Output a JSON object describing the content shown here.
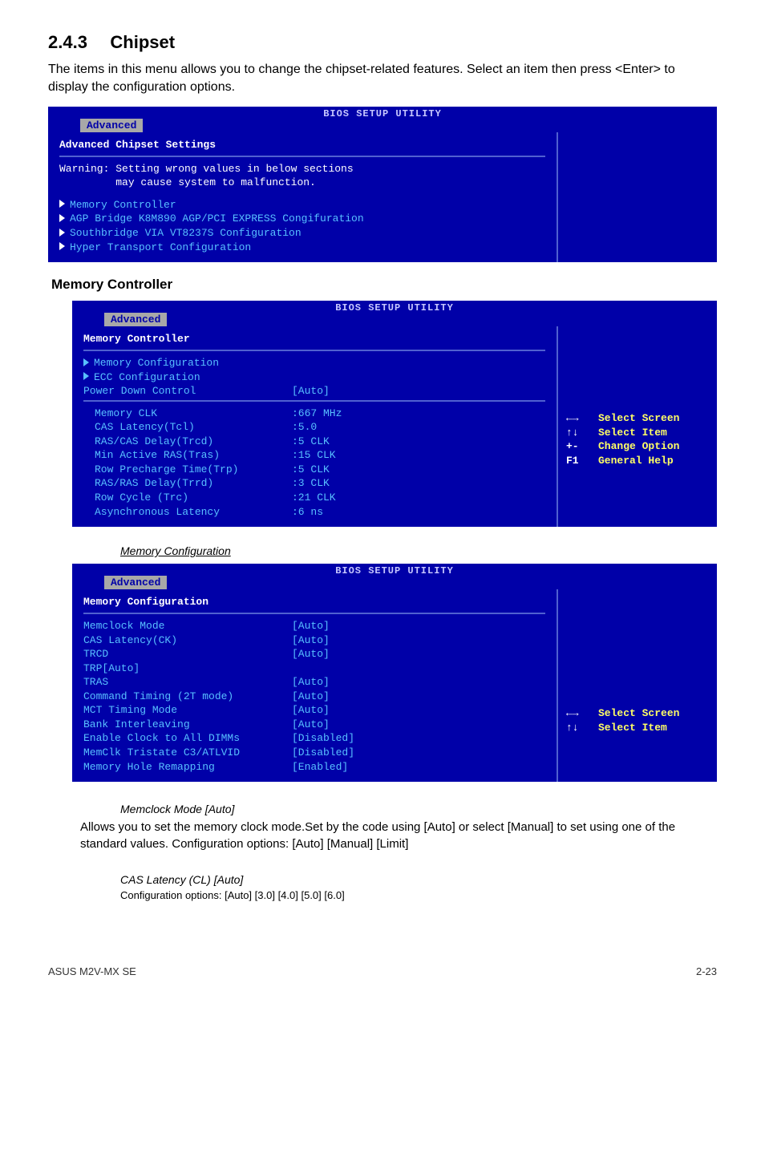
{
  "heading": {
    "number": "2.4.3",
    "title": "Chipset"
  },
  "intro": "The items in this menu allows you to change the chipset-related features. Select an item then press <Enter> to display the configuration options.",
  "bios1": {
    "util_title": "BIOS SETUP UTILITY",
    "tab": "Advanced",
    "header": "Advanced Chipset Settings",
    "warning_l1": "Warning: Setting wrong values in below sections",
    "warning_l2": "         may cause system to malfunction.",
    "items": [
      "Memory Controller",
      "AGP Bridge K8M890 AGP/PCI EXPRESS Congifuration",
      "Southbridge VIA VT8237S Configuration",
      "Hyper Transport Configuration"
    ]
  },
  "mem_heading": "Memory Controller",
  "bios2": {
    "util_title": "BIOS SETUP UTILITY",
    "tab": "Advanced",
    "header": "Memory Controller",
    "sub_items": [
      "Memory Configuration",
      "ECC Configuration"
    ],
    "power_label": "Power Down Control",
    "power_value": "[Auto]",
    "rows": [
      {
        "k": "Memory CLK",
        "v": ":667 MHz"
      },
      {
        "k": "CAS Latency(Tcl)",
        "v": ":5.0"
      },
      {
        "k": "RAS/CAS Delay(Trcd)",
        "v": ":5 CLK"
      },
      {
        "k": "Min Active RAS(Tras)",
        "v": ":15 CLK"
      },
      {
        "k": "Row Precharge Time(Trp)",
        "v": ":5 CLK"
      },
      {
        "k": "RAS/RAS Delay(Trrd)",
        "v": ":3 CLK"
      },
      {
        "k": "Row Cycle (Trc)",
        "v": ":21 CLK"
      },
      {
        "k": "Asynchronous Latency",
        "v": ":6 ns"
      }
    ],
    "legend": [
      {
        "k": "←→",
        "v": "Select Screen"
      },
      {
        "k": "↑↓",
        "v": "Select Item"
      },
      {
        "k": "+-",
        "v": "Change Option"
      },
      {
        "k": "F1",
        "v": "General Help"
      }
    ]
  },
  "memcfg_underline": "Memory Configuration",
  "bios3": {
    "util_title": "BIOS SETUP UTILITY",
    "tab": "Advanced",
    "header": "Memory Configuration",
    "rows": [
      {
        "k": "Memclock Mode",
        "v": "[Auto]"
      },
      {
        "k": "CAS Latency(CK)",
        "v": "[Auto]"
      },
      {
        "k": "TRCD",
        "v": "[Auto]"
      },
      {
        "k": "TRP[Auto]",
        "v": ""
      },
      {
        "k": "TRAS",
        "v": "[Auto]"
      },
      {
        "k": "Command Timing (2T mode)",
        "v": "[Auto]"
      },
      {
        "k": "MCT Timing Mode",
        "v": "[Auto]"
      },
      {
        "k": "Bank Interleaving",
        "v": "[Auto]"
      },
      {
        "k": "Enable Clock to All DIMMs",
        "v": "[Disabled]"
      },
      {
        "k": "MemClk Tristate C3/ATLVID",
        "v": "[Disabled]"
      },
      {
        "k": "Memory Hole Remapping",
        "v": "[Enabled]"
      }
    ],
    "legend": [
      {
        "k": "←→",
        "v": "Select Screen"
      },
      {
        "k": "↑↓",
        "v": "Select Item"
      }
    ]
  },
  "memclock": {
    "title": "Memclock Mode [Auto]",
    "para": "Allows you to set the memory clock mode.Set by the code using [Auto] or select [Manual] to set using one of the standard values. Configuration options: [Auto] [Manual] [Limit]"
  },
  "cas": {
    "title": "CAS Latency (CL) [Auto]",
    "line": "Configuration options: [Auto] [3.0] [4.0] [5.0] [6.0]"
  },
  "footer": {
    "left": "ASUS M2V-MX SE",
    "right": "2-23"
  }
}
